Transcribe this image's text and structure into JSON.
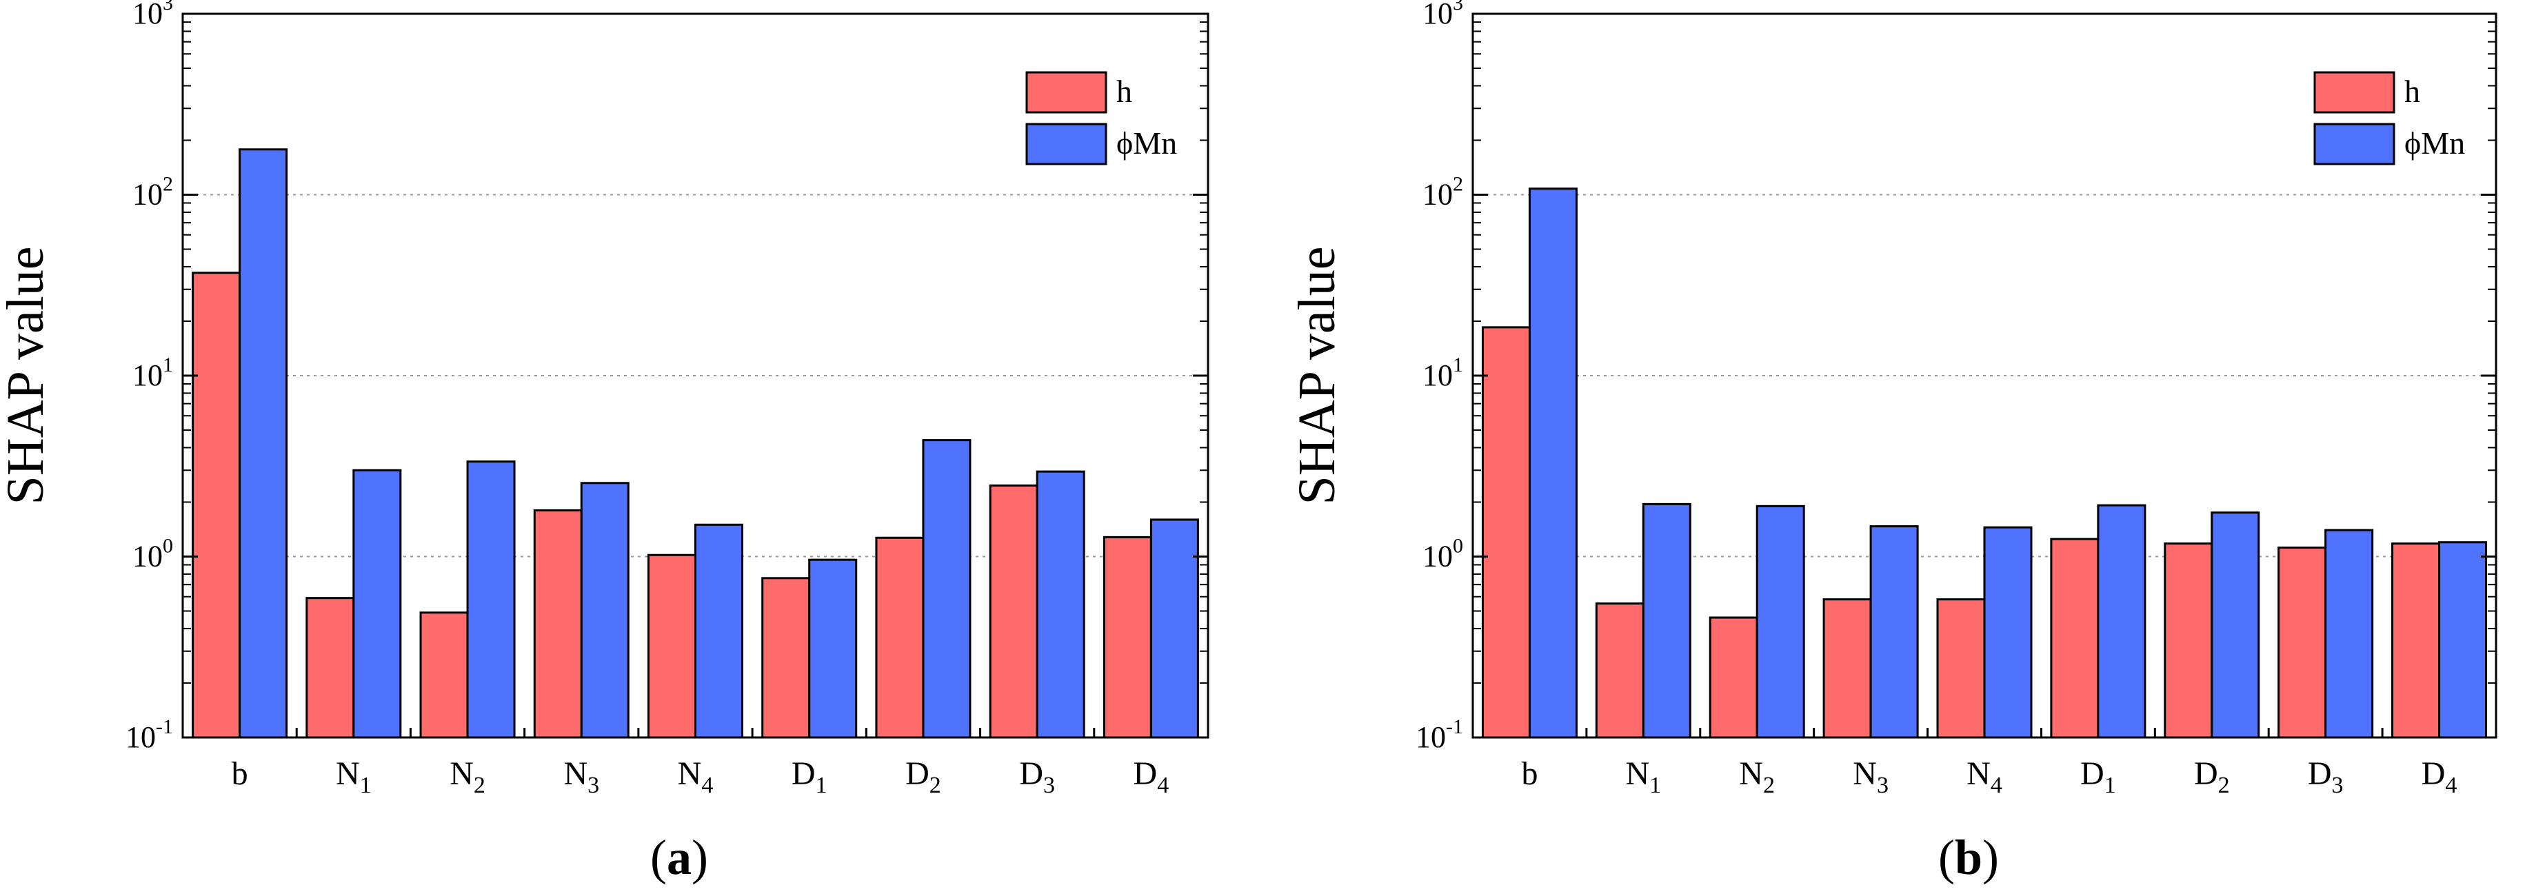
{
  "chart_data": [
    {
      "type": "bar",
      "scale": "log",
      "panel_label": "a",
      "ylabel": "SHAP value",
      "ylim": [
        0.1,
        1000
      ],
      "y_ticks": [
        {
          "value": 0.1,
          "base": "10",
          "exp": "-1"
        },
        {
          "value": 1,
          "base": "10",
          "exp": "0"
        },
        {
          "value": 10,
          "base": "10",
          "exp": "1"
        },
        {
          "value": 100,
          "base": "10",
          "exp": "2"
        },
        {
          "value": 1000,
          "base": "10",
          "exp": "3"
        }
      ],
      "grid": "horizontal dotted",
      "legend_position": "top-right",
      "categories": [
        {
          "base": "b",
          "sub": ""
        },
        {
          "base": "N",
          "sub": "1"
        },
        {
          "base": "N",
          "sub": "2"
        },
        {
          "base": "N",
          "sub": "3"
        },
        {
          "base": "N",
          "sub": "4"
        },
        {
          "base": "D",
          "sub": "1"
        },
        {
          "base": "D",
          "sub": "2"
        },
        {
          "base": "D",
          "sub": "3"
        },
        {
          "base": "D",
          "sub": "4"
        }
      ],
      "series": [
        {
          "name": "h",
          "color": "#ff6b6b",
          "values": [
            37,
            0.59,
            0.49,
            1.8,
            1.02,
            0.76,
            1.27,
            2.47,
            1.28
          ]
        },
        {
          "name": "ϕMn",
          "color": "#4f72ff",
          "values": [
            178,
            3.0,
            3.35,
            2.55,
            1.5,
            0.96,
            4.4,
            2.95,
            1.6
          ]
        }
      ]
    },
    {
      "type": "bar",
      "scale": "log",
      "panel_label": "b",
      "ylabel": "SHAP value",
      "ylim": [
        0.1,
        1000
      ],
      "y_ticks": [
        {
          "value": 0.1,
          "base": "10",
          "exp": "-1"
        },
        {
          "value": 1,
          "base": "10",
          "exp": "0"
        },
        {
          "value": 10,
          "base": "10",
          "exp": "1"
        },
        {
          "value": 100,
          "base": "10",
          "exp": "2"
        },
        {
          "value": 1000,
          "base": "10",
          "exp": "3"
        }
      ],
      "grid": "horizontal dotted",
      "legend_position": "top-right",
      "categories": [
        {
          "base": "b",
          "sub": ""
        },
        {
          "base": "N",
          "sub": "1"
        },
        {
          "base": "N",
          "sub": "2"
        },
        {
          "base": "N",
          "sub": "3"
        },
        {
          "base": "N",
          "sub": "4"
        },
        {
          "base": "D",
          "sub": "1"
        },
        {
          "base": "D",
          "sub": "2"
        },
        {
          "base": "D",
          "sub": "3"
        },
        {
          "base": "D",
          "sub": "4"
        }
      ],
      "series": [
        {
          "name": "h",
          "color": "#ff6b6b",
          "values": [
            18.5,
            0.55,
            0.46,
            0.58,
            0.58,
            1.25,
            1.18,
            1.12,
            1.18
          ]
        },
        {
          "name": "ϕMn",
          "color": "#4f72ff",
          "values": [
            108,
            1.95,
            1.9,
            1.47,
            1.45,
            1.92,
            1.75,
            1.4,
            1.2
          ]
        }
      ]
    }
  ]
}
